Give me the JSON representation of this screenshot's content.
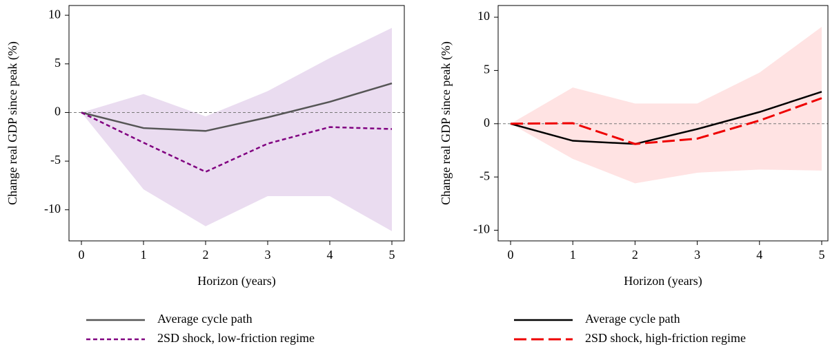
{
  "chart_data": [
    {
      "type": "line",
      "x": [
        0,
        1,
        2,
        3,
        4,
        5
      ],
      "xlim": [
        -0.2,
        5.2
      ],
      "ylim": [
        -13.2,
        11
      ],
      "xticks": [
        0,
        1,
        2,
        3,
        4,
        5
      ],
      "yticks": [
        -10,
        -5,
        0,
        5,
        10
      ],
      "xlabel": "Horizon (years)",
      "ylabel": "Change real GDP since peak (%)",
      "zero_line": true,
      "band": {
        "color": "#eadcf0",
        "upper": [
          0,
          1.9,
          -0.4,
          2.2,
          5.6,
          8.7
        ],
        "lower": [
          0,
          -7.9,
          -11.7,
          -8.6,
          -8.6,
          -12.2
        ]
      },
      "series": [
        {
          "name": "Average cycle path",
          "color": "#555555",
          "dash": "solid",
          "values": [
            0,
            -1.6,
            -1.9,
            -0.5,
            1.1,
            3.0
          ]
        },
        {
          "name": "2SD shock, low-friction regime",
          "color": "#800080",
          "dash": "short",
          "values": [
            0,
            -3.1,
            -6.1,
            -3.2,
            -1.5,
            -1.7
          ]
        }
      ]
    },
    {
      "type": "line",
      "x": [
        0,
        1,
        2,
        3,
        4,
        5
      ],
      "xlim": [
        -0.2,
        5.1
      ],
      "ylim": [
        -11,
        11.1
      ],
      "xticks": [
        0,
        1,
        2,
        3,
        4,
        5
      ],
      "yticks": [
        -10,
        -5,
        0,
        5,
        10
      ],
      "xlabel": "Horizon (years)",
      "ylabel": "Change real GDP since peak (%)",
      "zero_line": true,
      "band": {
        "color": "#ffe3e3",
        "upper": [
          0,
          3.4,
          1.9,
          1.9,
          4.8,
          9.1
        ],
        "lower": [
          0,
          -3.3,
          -5.6,
          -4.6,
          -4.3,
          -4.4
        ]
      },
      "series": [
        {
          "name": "Average cycle path",
          "color": "#000000",
          "dash": "solid",
          "values": [
            0,
            -1.6,
            -1.9,
            -0.5,
            1.1,
            3.0
          ]
        },
        {
          "name": "2SD shock, high-friction regime",
          "color": "#ee0000",
          "dash": "long",
          "values": [
            0,
            0.05,
            -1.9,
            -1.4,
            0.3,
            2.4
          ]
        }
      ]
    }
  ]
}
